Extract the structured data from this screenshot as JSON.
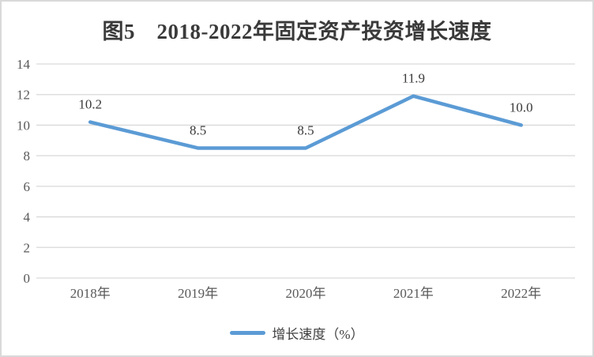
{
  "title": "图5　2018-2022年固定资产投资增长速度",
  "legend": {
    "label": "增长速度（%）"
  },
  "chart_data": {
    "type": "line",
    "title": "图5　2018-2022年固定资产投资增长速度",
    "categories": [
      "2018年",
      "2019年",
      "2020年",
      "2021年",
      "2022年"
    ],
    "series": [
      {
        "name": "增长速度（%）",
        "values": [
          10.2,
          8.5,
          8.5,
          11.9,
          10.0
        ]
      }
    ],
    "data_labels": [
      "10.2",
      "8.5",
      "8.5",
      "11.9",
      "10.0"
    ],
    "xlabel": "",
    "ylabel": "",
    "ylim": [
      0,
      14
    ],
    "ytick_step": 2,
    "yticks": [
      0,
      2,
      4,
      6,
      8,
      10,
      12,
      14
    ],
    "grid": true,
    "legend_position": "bottom",
    "colors": {
      "line": "#5b9bd5",
      "grid": "#d9d9d9",
      "tick_label": "#595959",
      "title": "#3a3a3a",
      "frame_border": "#d9d9d9",
      "background": "#ffffff"
    }
  }
}
